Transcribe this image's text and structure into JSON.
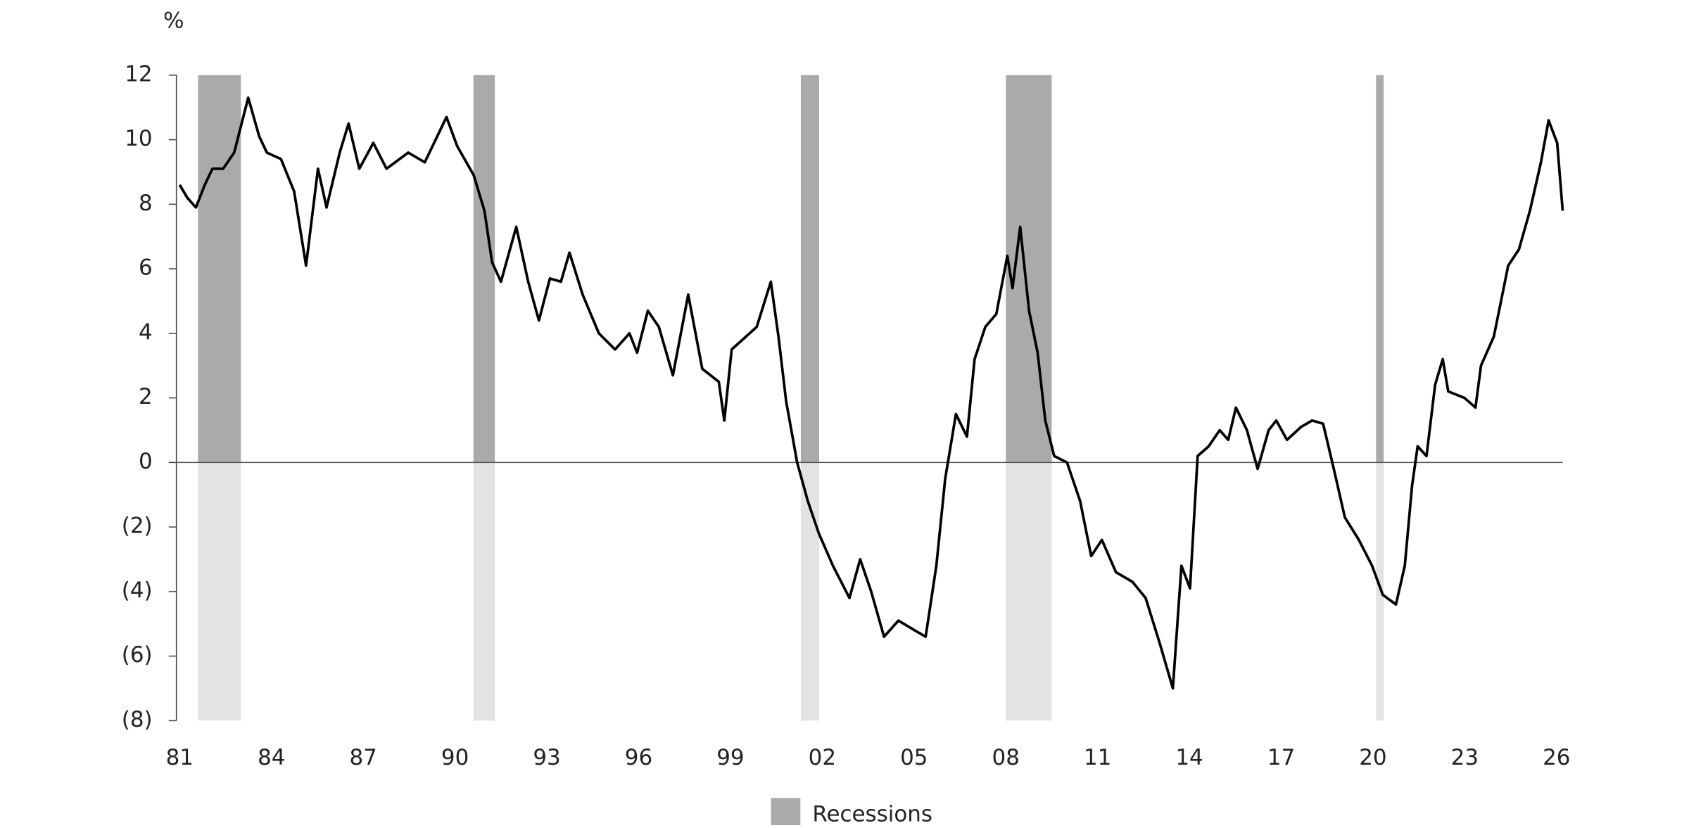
{
  "chart_data": {
    "type": "line",
    "y_unit_label": "%",
    "color": "#000000",
    "xlim": [
      1981,
      2026.2
    ],
    "xticks": [
      {
        "value": 1981,
        "label": "81"
      },
      {
        "value": 1984,
        "label": "84"
      },
      {
        "value": 1987,
        "label": "87"
      },
      {
        "value": 1990,
        "label": "90"
      },
      {
        "value": 1993,
        "label": "93"
      },
      {
        "value": 1996,
        "label": "96"
      },
      {
        "value": 1999,
        "label": "99"
      },
      {
        "value": 2002,
        "label": "02"
      },
      {
        "value": 2005,
        "label": "05"
      },
      {
        "value": 2008,
        "label": "08"
      },
      {
        "value": 2011,
        "label": "11"
      },
      {
        "value": 2014,
        "label": "14"
      },
      {
        "value": 2017,
        "label": "17"
      },
      {
        "value": 2020,
        "label": "20"
      },
      {
        "value": 2023,
        "label": "23"
      },
      {
        "value": 2026,
        "label": "26"
      }
    ],
    "ylim": [
      -8,
      12
    ],
    "yticks": [
      {
        "value": -8,
        "label": "(8)"
      },
      {
        "value": -6,
        "label": "(6)"
      },
      {
        "value": -4,
        "label": "(4)"
      },
      {
        "value": -2,
        "label": "(2)"
      },
      0,
      2,
      4,
      6,
      8,
      10,
      12
    ],
    "x": [
      1981.0,
      1981.25,
      1981.53,
      1981.82,
      1982.07,
      1982.42,
      1982.78,
      1983.24,
      1983.6,
      1983.85,
      1984.31,
      1984.74,
      1985.13,
      1985.52,
      1985.8,
      1986.23,
      1986.52,
      1986.87,
      1987.33,
      1987.76,
      1988.47,
      1989.01,
      1989.72,
      1990.07,
      1990.61,
      1990.96,
      1991.21,
      1991.5,
      1992.0,
      1992.39,
      1992.74,
      1993.1,
      1993.46,
      1993.74,
      1994.17,
      1994.7,
      1995.23,
      1995.7,
      1995.95,
      1996.3,
      1996.66,
      1997.12,
      1997.62,
      1998.08,
      1998.62,
      1998.8,
      1999.04,
      1999.51,
      1999.86,
      2000.32,
      2000.57,
      2000.82,
      2001.18,
      2001.53,
      2001.89,
      2002.35,
      2002.89,
      2003.24,
      2003.6,
      2004.02,
      2004.49,
      2005.02,
      2005.38,
      2005.73,
      2006.02,
      2006.37,
      2006.73,
      2006.98,
      2007.33,
      2007.69,
      2008.05,
      2008.22,
      2008.47,
      2008.76,
      2009.04,
      2009.29,
      2009.58,
      2010.0,
      2010.43,
      2010.79,
      2011.14,
      2011.6,
      2012.14,
      2012.57,
      2013.03,
      2013.46,
      2013.74,
      2014.02,
      2014.27,
      2014.63,
      2014.99,
      2015.27,
      2015.52,
      2015.88,
      2016.23,
      2016.59,
      2016.84,
      2017.19,
      2017.65,
      2018.01,
      2018.37,
      2018.72,
      2019.08,
      2019.54,
      2019.97,
      2020.32,
      2020.75,
      2021.04,
      2021.28,
      2021.46,
      2021.75,
      2022.03,
      2022.28,
      2022.46,
      2022.99,
      2023.35,
      2023.53,
      2023.95,
      2024.42,
      2024.77,
      2025.13,
      2025.49,
      2025.74,
      2026.02,
      2026.2
    ],
    "values": [
      8.6,
      8.2,
      7.9,
      8.6,
      9.1,
      9.1,
      9.6,
      11.3,
      10.1,
      9.6,
      9.4,
      8.4,
      6.1,
      9.1,
      7.9,
      9.6,
      10.5,
      9.1,
      9.9,
      9.1,
      9.6,
      9.3,
      10.7,
      9.8,
      8.9,
      7.8,
      6.2,
      5.6,
      7.3,
      5.6,
      4.4,
      5.7,
      5.6,
      6.5,
      5.2,
      4.0,
      3.5,
      4.0,
      3.4,
      4.7,
      4.2,
      2.7,
      5.2,
      2.9,
      2.5,
      1.3,
      3.5,
      3.9,
      4.2,
      5.6,
      3.9,
      1.9,
      0,
      -1.2,
      -2.2,
      -3.2,
      -4.2,
      -3.0,
      -4.0,
      -5.4,
      -4.9,
      -5.2,
      -5.4,
      -3.2,
      -0.5,
      1.5,
      0.8,
      3.2,
      4.2,
      4.6,
      6.4,
      5.4,
      7.3,
      4.7,
      3.4,
      1.3,
      0.2,
      0,
      -1.2,
      -2.9,
      -2.4,
      -3.4,
      -3.7,
      -4.2,
      -5.6,
      -7.0,
      -3.2,
      -3.9,
      0.2,
      0.5,
      1.0,
      0.7,
      1.7,
      1.0,
      -0.2,
      1.0,
      1.3,
      0.7,
      1.1,
      1.3,
      1.2,
      -0.2,
      -1.7,
      -2.4,
      -3.2,
      -4.1,
      -4.4,
      -3.2,
      -0.7,
      0.5,
      0.2,
      2.4,
      3.2,
      2.2,
      2.0,
      1.7,
      3.0,
      3.9,
      6.1,
      6.6,
      7.8,
      9.3,
      10.6,
      9.9,
      7.8
    ],
    "recessions": {
      "name": "Recessions",
      "color": "#aaaaaa",
      "spans": [
        [
          1981.6,
          1983.0
        ],
        [
          1990.6,
          1991.3
        ],
        [
          2001.3,
          2001.9
        ],
        [
          2008.0,
          2009.5
        ],
        [
          2020.1,
          2020.35
        ]
      ]
    }
  }
}
